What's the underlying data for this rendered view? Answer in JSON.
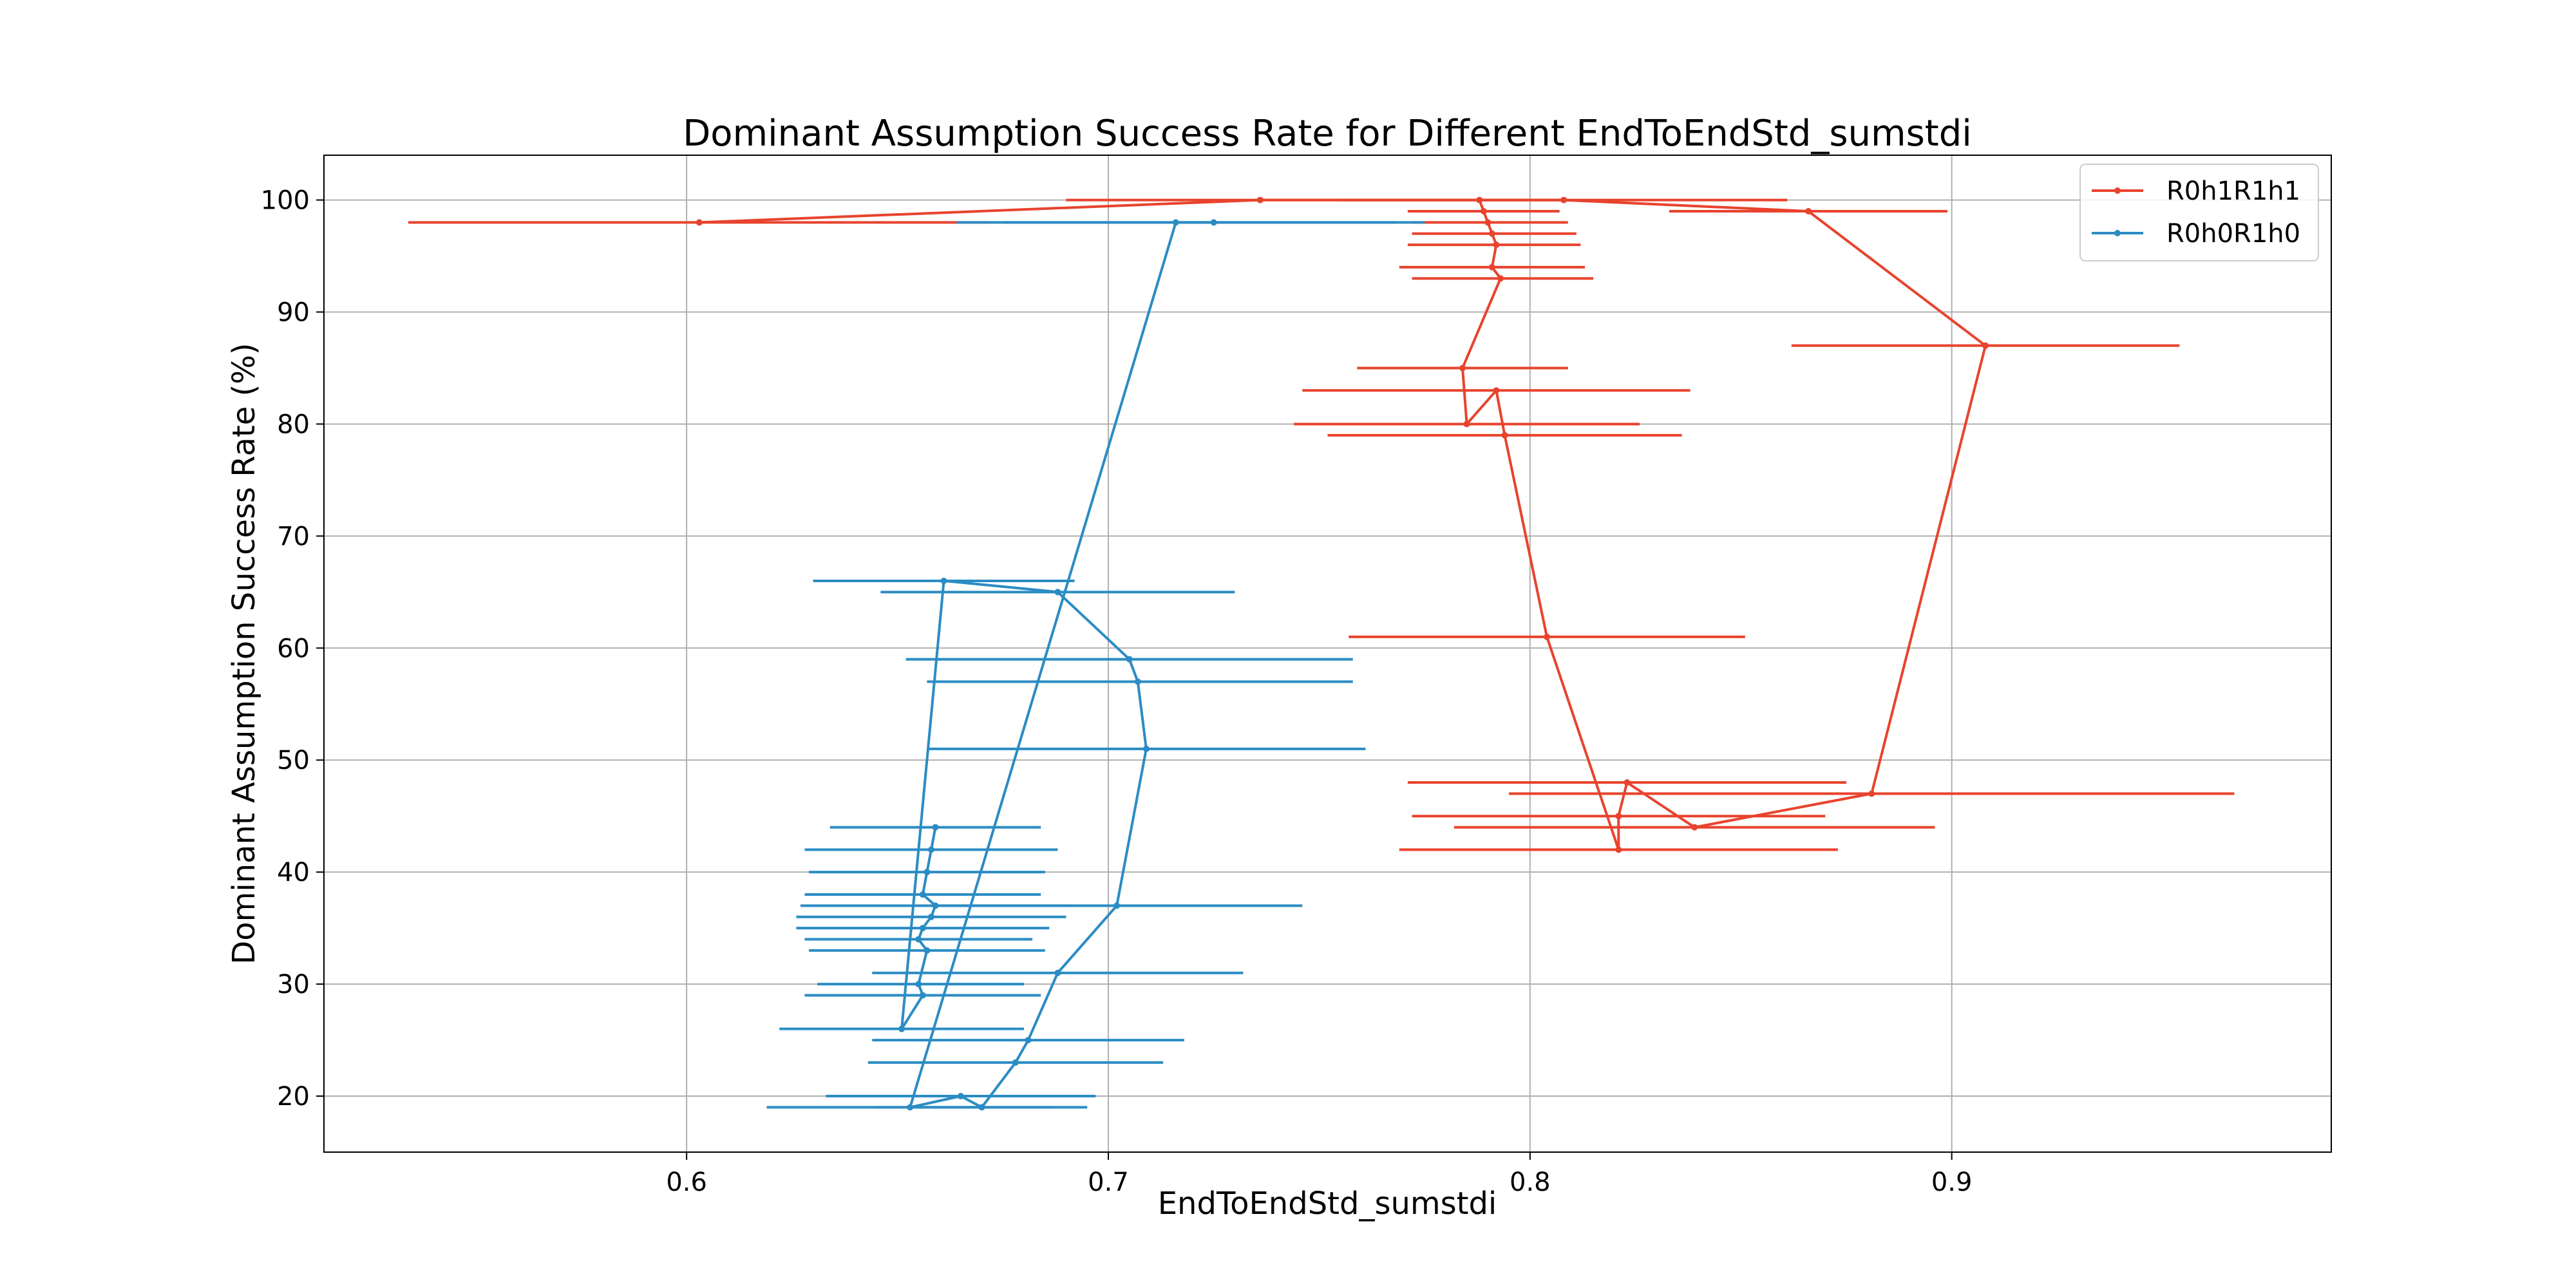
{
  "chart_data": {
    "type": "line",
    "title": "Dominant Assumption Success Rate for Different EndToEndStd_sumstdi",
    "xlabel": "EndToEndStd_sumstdi",
    "ylabel": "Dominant Assumption Success Rate (%)",
    "xlim": [
      0.514,
      0.99
    ],
    "ylim": [
      15,
      104
    ],
    "xticks": [
      0.6,
      0.7,
      0.8,
      0.9
    ],
    "yticks": [
      20,
      30,
      40,
      50,
      60,
      70,
      80,
      90,
      100
    ],
    "xtick_labels": [
      "0.6",
      "0.7",
      "0.8",
      "0.9"
    ],
    "ytick_labels": [
      "20",
      "30",
      "40",
      "50",
      "60",
      "70",
      "80",
      "90",
      "100"
    ],
    "grid": true,
    "legend_position": "top-right",
    "series": [
      {
        "name": "R0h1R1h1",
        "color": "#e8432d",
        "points": [
          {
            "x": 0.603,
            "y": 98,
            "lo": 0.534,
            "hi": 0.672
          },
          {
            "x": 0.736,
            "y": 100,
            "lo": 0.69,
            "hi": 0.782
          },
          {
            "x": 0.808,
            "y": 100,
            "lo": 0.755,
            "hi": 0.861
          },
          {
            "x": 0.866,
            "y": 99,
            "lo": 0.833,
            "hi": 0.899
          },
          {
            "x": 0.908,
            "y": 87,
            "lo": 0.862,
            "hi": 0.954
          },
          {
            "x": 0.881,
            "y": 47,
            "lo": 0.795,
            "hi": 0.967
          },
          {
            "x": 0.839,
            "y": 44,
            "lo": 0.782,
            "hi": 0.896
          },
          {
            "x": 0.823,
            "y": 48,
            "lo": 0.771,
            "hi": 0.875
          },
          {
            "x": 0.821,
            "y": 45,
            "lo": 0.772,
            "hi": 0.87
          },
          {
            "x": 0.821,
            "y": 42,
            "lo": 0.769,
            "hi": 0.873
          },
          {
            "x": 0.804,
            "y": 61,
            "lo": 0.757,
            "hi": 0.851
          },
          {
            "x": 0.794,
            "y": 79,
            "lo": 0.752,
            "hi": 0.836
          },
          {
            "x": 0.792,
            "y": 83,
            "lo": 0.746,
            "hi": 0.838
          },
          {
            "x": 0.785,
            "y": 80,
            "lo": 0.744,
            "hi": 0.826
          },
          {
            "x": 0.784,
            "y": 85,
            "lo": 0.759,
            "hi": 0.809
          },
          {
            "x": 0.793,
            "y": 93,
            "lo": 0.772,
            "hi": 0.815
          },
          {
            "x": 0.791,
            "y": 94,
            "lo": 0.769,
            "hi": 0.813
          },
          {
            "x": 0.792,
            "y": 96,
            "lo": 0.771,
            "hi": 0.812
          },
          {
            "x": 0.791,
            "y": 97,
            "lo": 0.772,
            "hi": 0.811
          },
          {
            "x": 0.79,
            "y": 98,
            "lo": 0.772,
            "hi": 0.809
          },
          {
            "x": 0.789,
            "y": 99,
            "lo": 0.771,
            "hi": 0.807
          },
          {
            "x": 0.788,
            "y": 100,
            "lo": 0.77,
            "hi": 0.807
          }
        ]
      },
      {
        "name": "R0h0R1h0",
        "color": "#2b8cc4",
        "points": [
          {
            "x": 0.725,
            "y": 98,
            "lo": 0.675,
            "hi": 0.775
          },
          {
            "x": 0.716,
            "y": 98,
            "lo": 0.664,
            "hi": 0.768
          },
          {
            "x": 0.653,
            "y": 19,
            "lo": 0.619,
            "hi": 0.687
          },
          {
            "x": 0.665,
            "y": 20,
            "lo": 0.633,
            "hi": 0.697
          },
          {
            "x": 0.67,
            "y": 19,
            "lo": 0.645,
            "hi": 0.695
          },
          {
            "x": 0.678,
            "y": 23,
            "lo": 0.643,
            "hi": 0.713
          },
          {
            "x": 0.681,
            "y": 25,
            "lo": 0.644,
            "hi": 0.718
          },
          {
            "x": 0.688,
            "y": 31,
            "lo": 0.644,
            "hi": 0.732
          },
          {
            "x": 0.702,
            "y": 37,
            "lo": 0.659,
            "hi": 0.746
          },
          {
            "x": 0.709,
            "y": 51,
            "lo": 0.657,
            "hi": 0.761
          },
          {
            "x": 0.707,
            "y": 57,
            "lo": 0.657,
            "hi": 0.758
          },
          {
            "x": 0.705,
            "y": 59,
            "lo": 0.652,
            "hi": 0.758
          },
          {
            "x": 0.688,
            "y": 65,
            "lo": 0.646,
            "hi": 0.73
          },
          {
            "x": 0.661,
            "y": 66,
            "lo": 0.63,
            "hi": 0.692
          },
          {
            "x": 0.651,
            "y": 26,
            "lo": 0.622,
            "hi": 0.68
          },
          {
            "x": 0.656,
            "y": 29,
            "lo": 0.628,
            "hi": 0.684
          },
          {
            "x": 0.655,
            "y": 30,
            "lo": 0.631,
            "hi": 0.68
          },
          {
            "x": 0.657,
            "y": 33,
            "lo": 0.629,
            "hi": 0.685
          },
          {
            "x": 0.655,
            "y": 34,
            "lo": 0.628,
            "hi": 0.682
          },
          {
            "x": 0.656,
            "y": 35,
            "lo": 0.626,
            "hi": 0.686
          },
          {
            "x": 0.658,
            "y": 36,
            "lo": 0.626,
            "hi": 0.69
          },
          {
            "x": 0.659,
            "y": 37,
            "lo": 0.627,
            "hi": 0.691
          },
          {
            "x": 0.656,
            "y": 38,
            "lo": 0.628,
            "hi": 0.684
          },
          {
            "x": 0.657,
            "y": 40,
            "lo": 0.629,
            "hi": 0.685
          },
          {
            "x": 0.658,
            "y": 42,
            "lo": 0.628,
            "hi": 0.688
          },
          {
            "x": 0.659,
            "y": 44,
            "lo": 0.634,
            "hi": 0.684
          }
        ]
      }
    ]
  }
}
